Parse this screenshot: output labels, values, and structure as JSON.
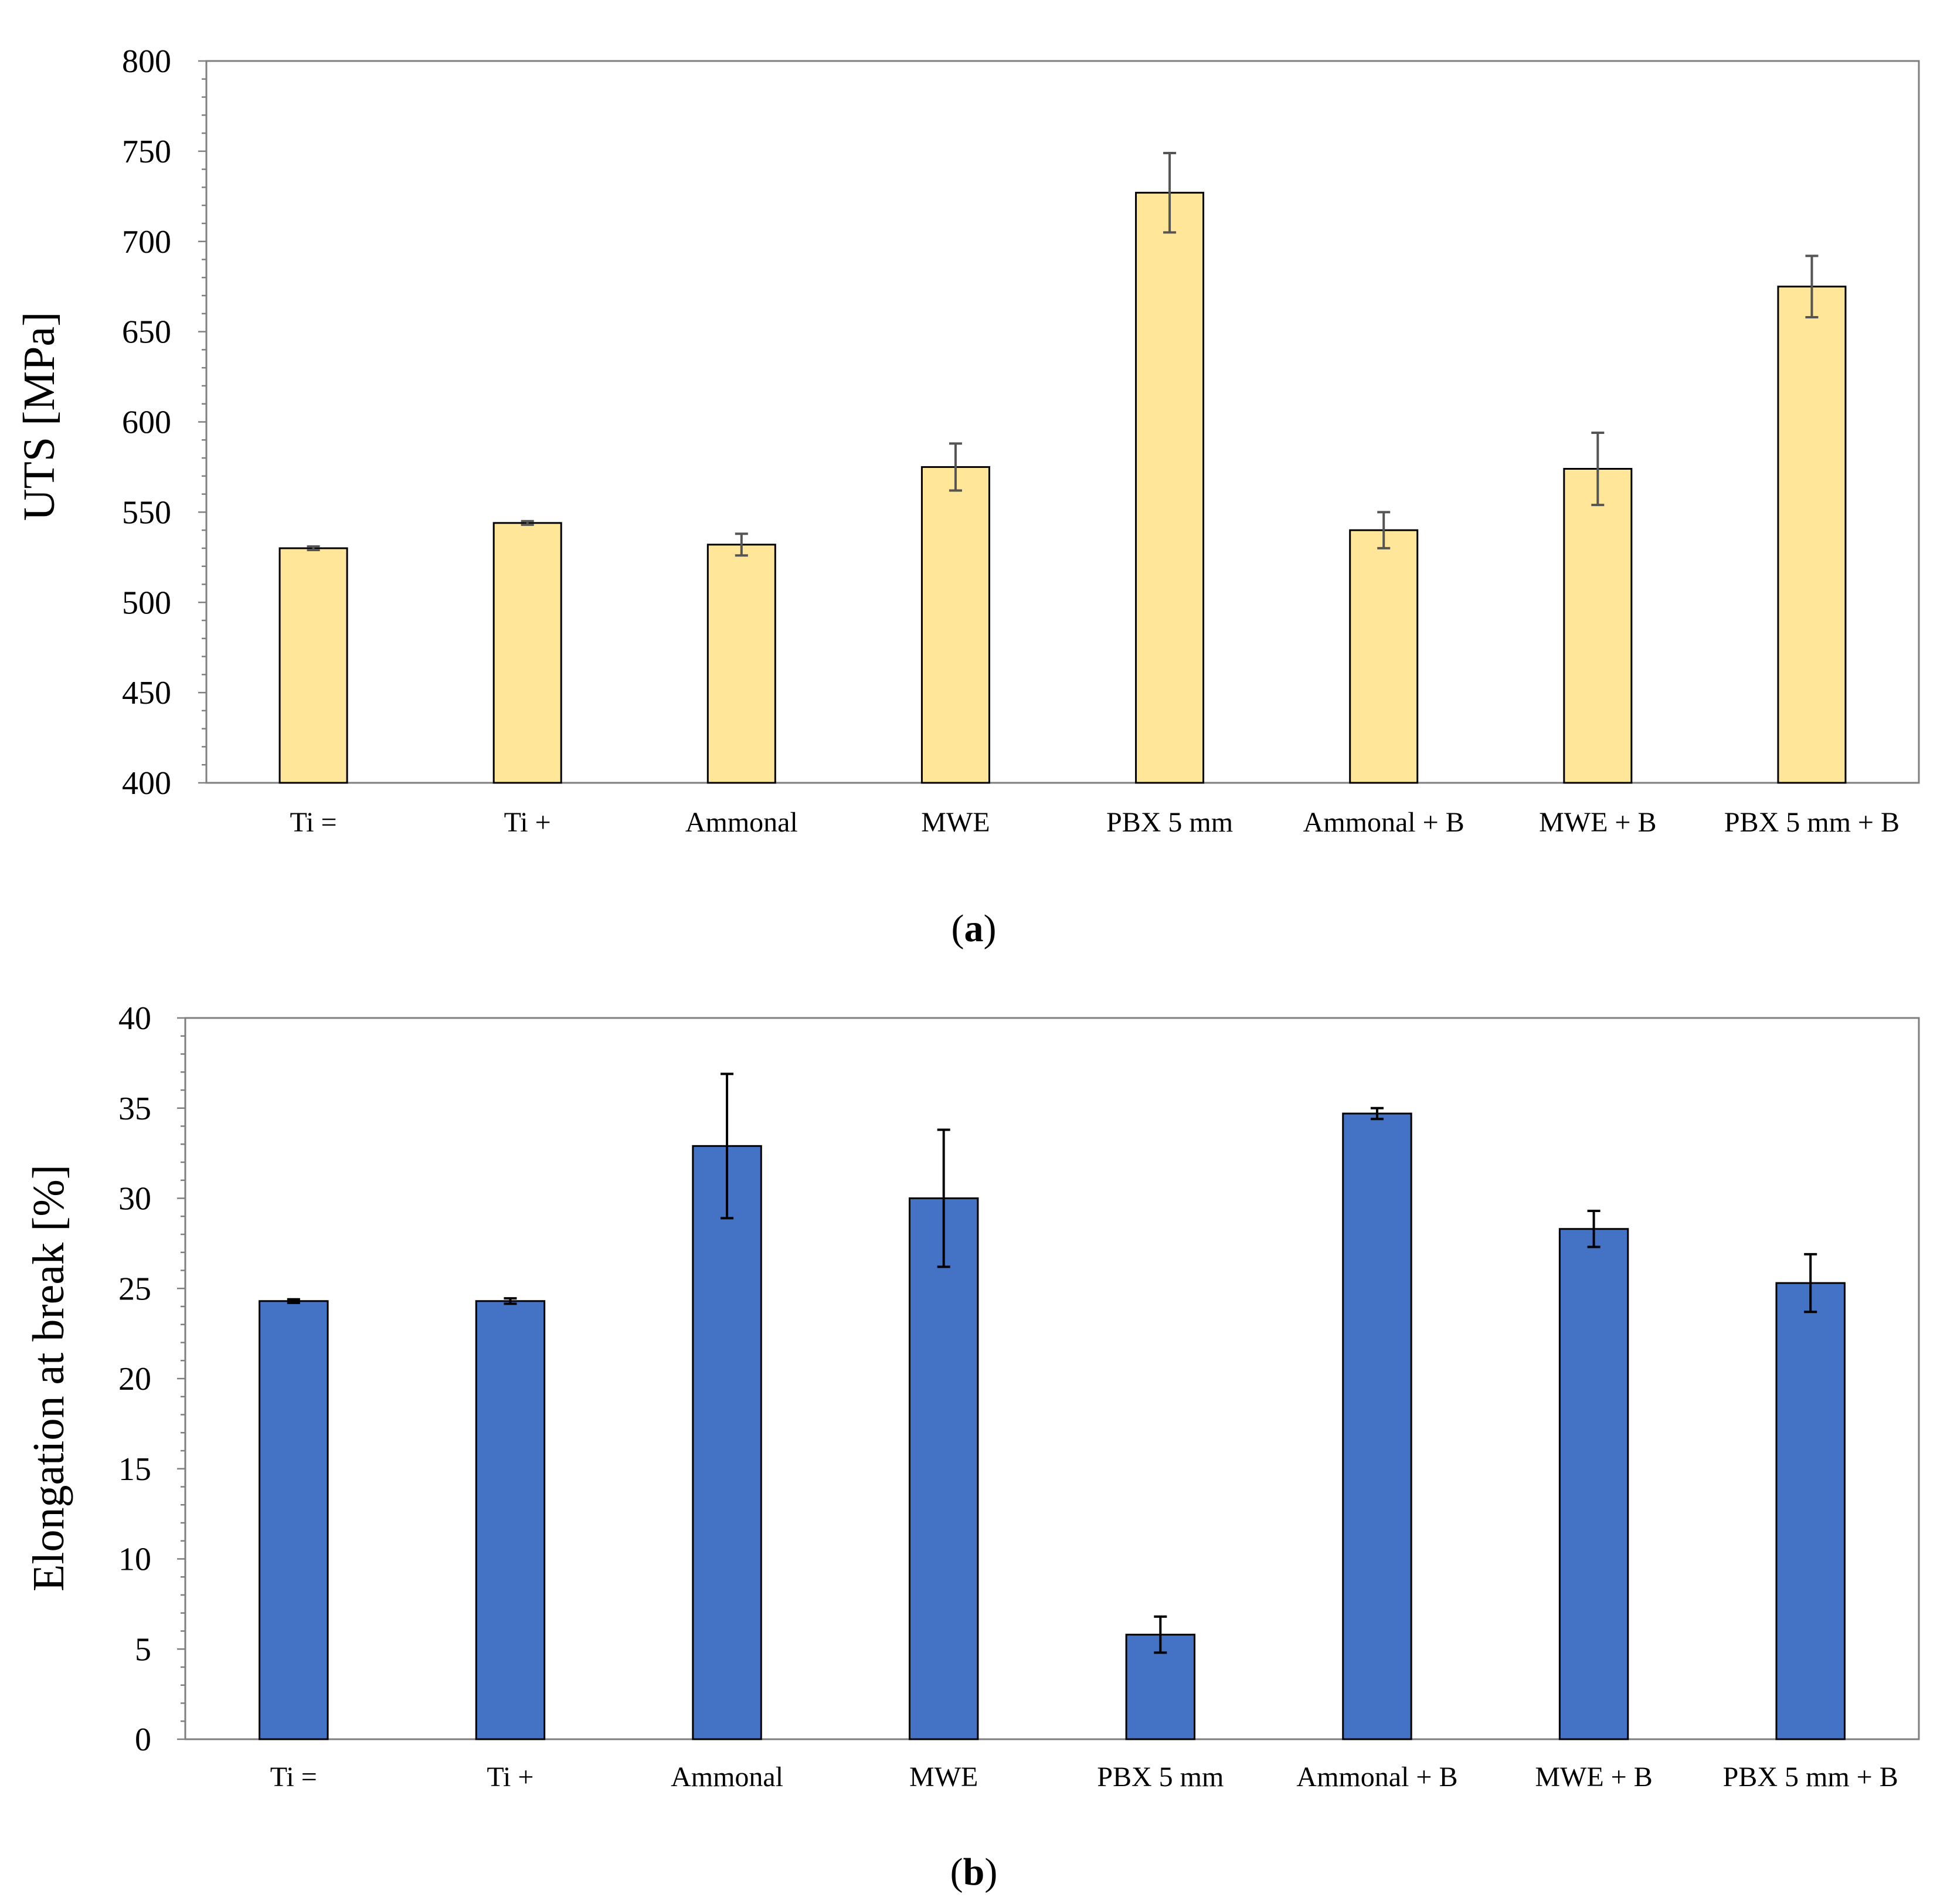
{
  "chart_data": [
    {
      "type": "bar",
      "panel_label": "a",
      "title": "",
      "xlabel": "",
      "ylabel": "UTS [MPa]",
      "ylim": [
        400,
        800
      ],
      "ytick_step": 50,
      "yticks": [
        "400",
        "450",
        "500",
        "550",
        "600",
        "650",
        "700",
        "750",
        "800"
      ],
      "categories": [
        "Ti =",
        "Ti +",
        "Ammonal",
        "MWE",
        "PBX 5 mm",
        "Ammonal + B",
        "MWE + B",
        "PBX 5 mm + B"
      ],
      "values": [
        530,
        544,
        532,
        575,
        727,
        540,
        574,
        675
      ],
      "errors": [
        1,
        1,
        6,
        13,
        22,
        10,
        20,
        17
      ],
      "bar_color": "#FFE699",
      "error_color": "#555555",
      "grid": false
    },
    {
      "type": "bar",
      "panel_label": "b",
      "title": "",
      "xlabel": "",
      "ylabel": "Elongation at break [%]",
      "ylim": [
        0,
        40
      ],
      "ytick_step": 5,
      "yticks": [
        "0",
        "5",
        "10",
        "15",
        "20",
        "25",
        "30",
        "35",
        "40"
      ],
      "categories": [
        "Ti =",
        "Ti +",
        "Ammonal",
        "MWE",
        "PBX 5 mm",
        "Ammonal + B",
        "MWE + B",
        "PBX 5 mm + B"
      ],
      "values": [
        24.3,
        24.3,
        32.9,
        30.0,
        5.8,
        34.7,
        28.3,
        25.3
      ],
      "errors": [
        0.1,
        0.15,
        4.0,
        3.8,
        1.0,
        0.3,
        1.0,
        1.6
      ],
      "bar_color": "#4472C4",
      "error_color": "#000000",
      "grid": false
    }
  ]
}
